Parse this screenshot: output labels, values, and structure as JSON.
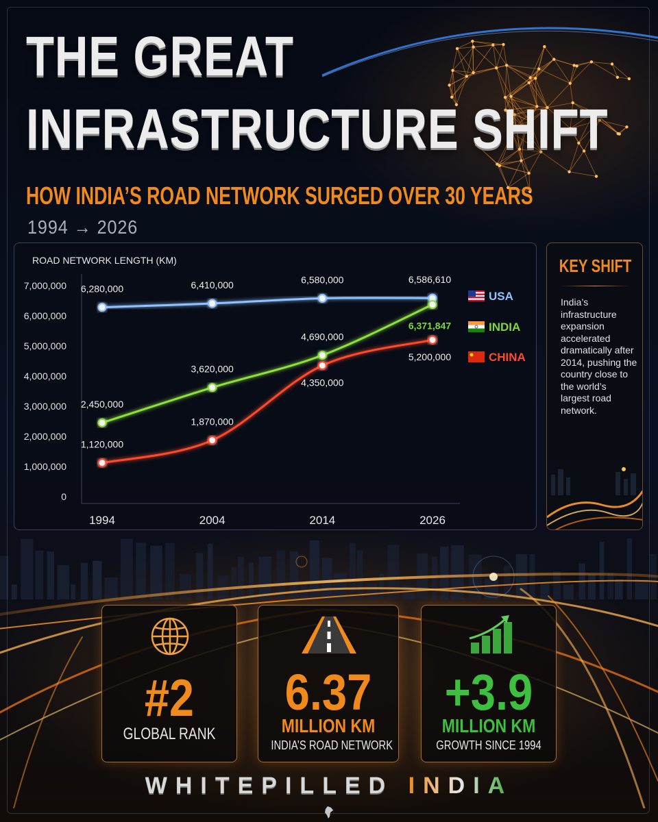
{
  "header": {
    "title_line1": "THE GREAT",
    "title_line2": "INFRASTRUCTURE SHIFT",
    "subtitle": "HOW INDIA’S ROAD NETWORK SURGED OVER 30 YEARS",
    "years": "1994 → 2026"
  },
  "chart_data": {
    "type": "line",
    "ylabel": "ROAD NETWORK LENGTH (KM)",
    "x": [
      "1994",
      "2004",
      "2014",
      "2026"
    ],
    "y_ticks": [
      "7,000,000",
      "6,000,000",
      "5,000,000",
      "4,000,000",
      "3,000,000",
      "2,000,000",
      "1,000,000",
      "0"
    ],
    "ylim": [
      0,
      7000000
    ],
    "grid": false,
    "legend_position": "right",
    "series": [
      {
        "name": "USA",
        "values": [
          6280000,
          6410000,
          6580000,
          6586610
        ],
        "labels": [
          "6,280,000",
          "6,410,000",
          "6,580,000",
          "6,586,610"
        ],
        "color": "#8fc3ff"
      },
      {
        "name": "INDIA",
        "values": [
          2450000,
          3620000,
          4690000,
          6371847
        ],
        "labels": [
          "2,450,000",
          "3,620,000",
          "4,690,000",
          "6,371,847"
        ],
        "color": "#8ee03a"
      },
      {
        "name": "CHINA",
        "values": [
          1120000,
          1870000,
          4350000,
          5200000
        ],
        "labels": [
          "1,120,000",
          "1,870,000",
          "4,350,000",
          "5,200,000"
        ],
        "color": "#ff4a2a"
      }
    ]
  },
  "key_shift": {
    "title": "KEY SHIFT",
    "body": "India’s infrastructure expansion accelerated dramatically after 2014, pushing the country close to the world’s largest road network."
  },
  "stats": {
    "rank": {
      "icon": "globe-icon",
      "value": "#2",
      "caption": "GLOBAL RANK"
    },
    "network": {
      "icon": "road-icon",
      "value": "6.37",
      "unit": "MILLION KM",
      "caption": "INDIA’S ROAD NETWORK"
    },
    "growth": {
      "icon": "growth-chart-icon",
      "value": "+3.9",
      "unit": "MILLION KM",
      "caption": "GROWTH SINCE 1994"
    }
  },
  "brand": {
    "part1": "WHITEPILLED",
    "part2": "INDIA"
  },
  "colors": {
    "accent_orange": "#f08a1c",
    "green": "#3aa83a",
    "usa": "#8fc3ff",
    "india": "#8ee03a",
    "china": "#ff4a2a"
  }
}
